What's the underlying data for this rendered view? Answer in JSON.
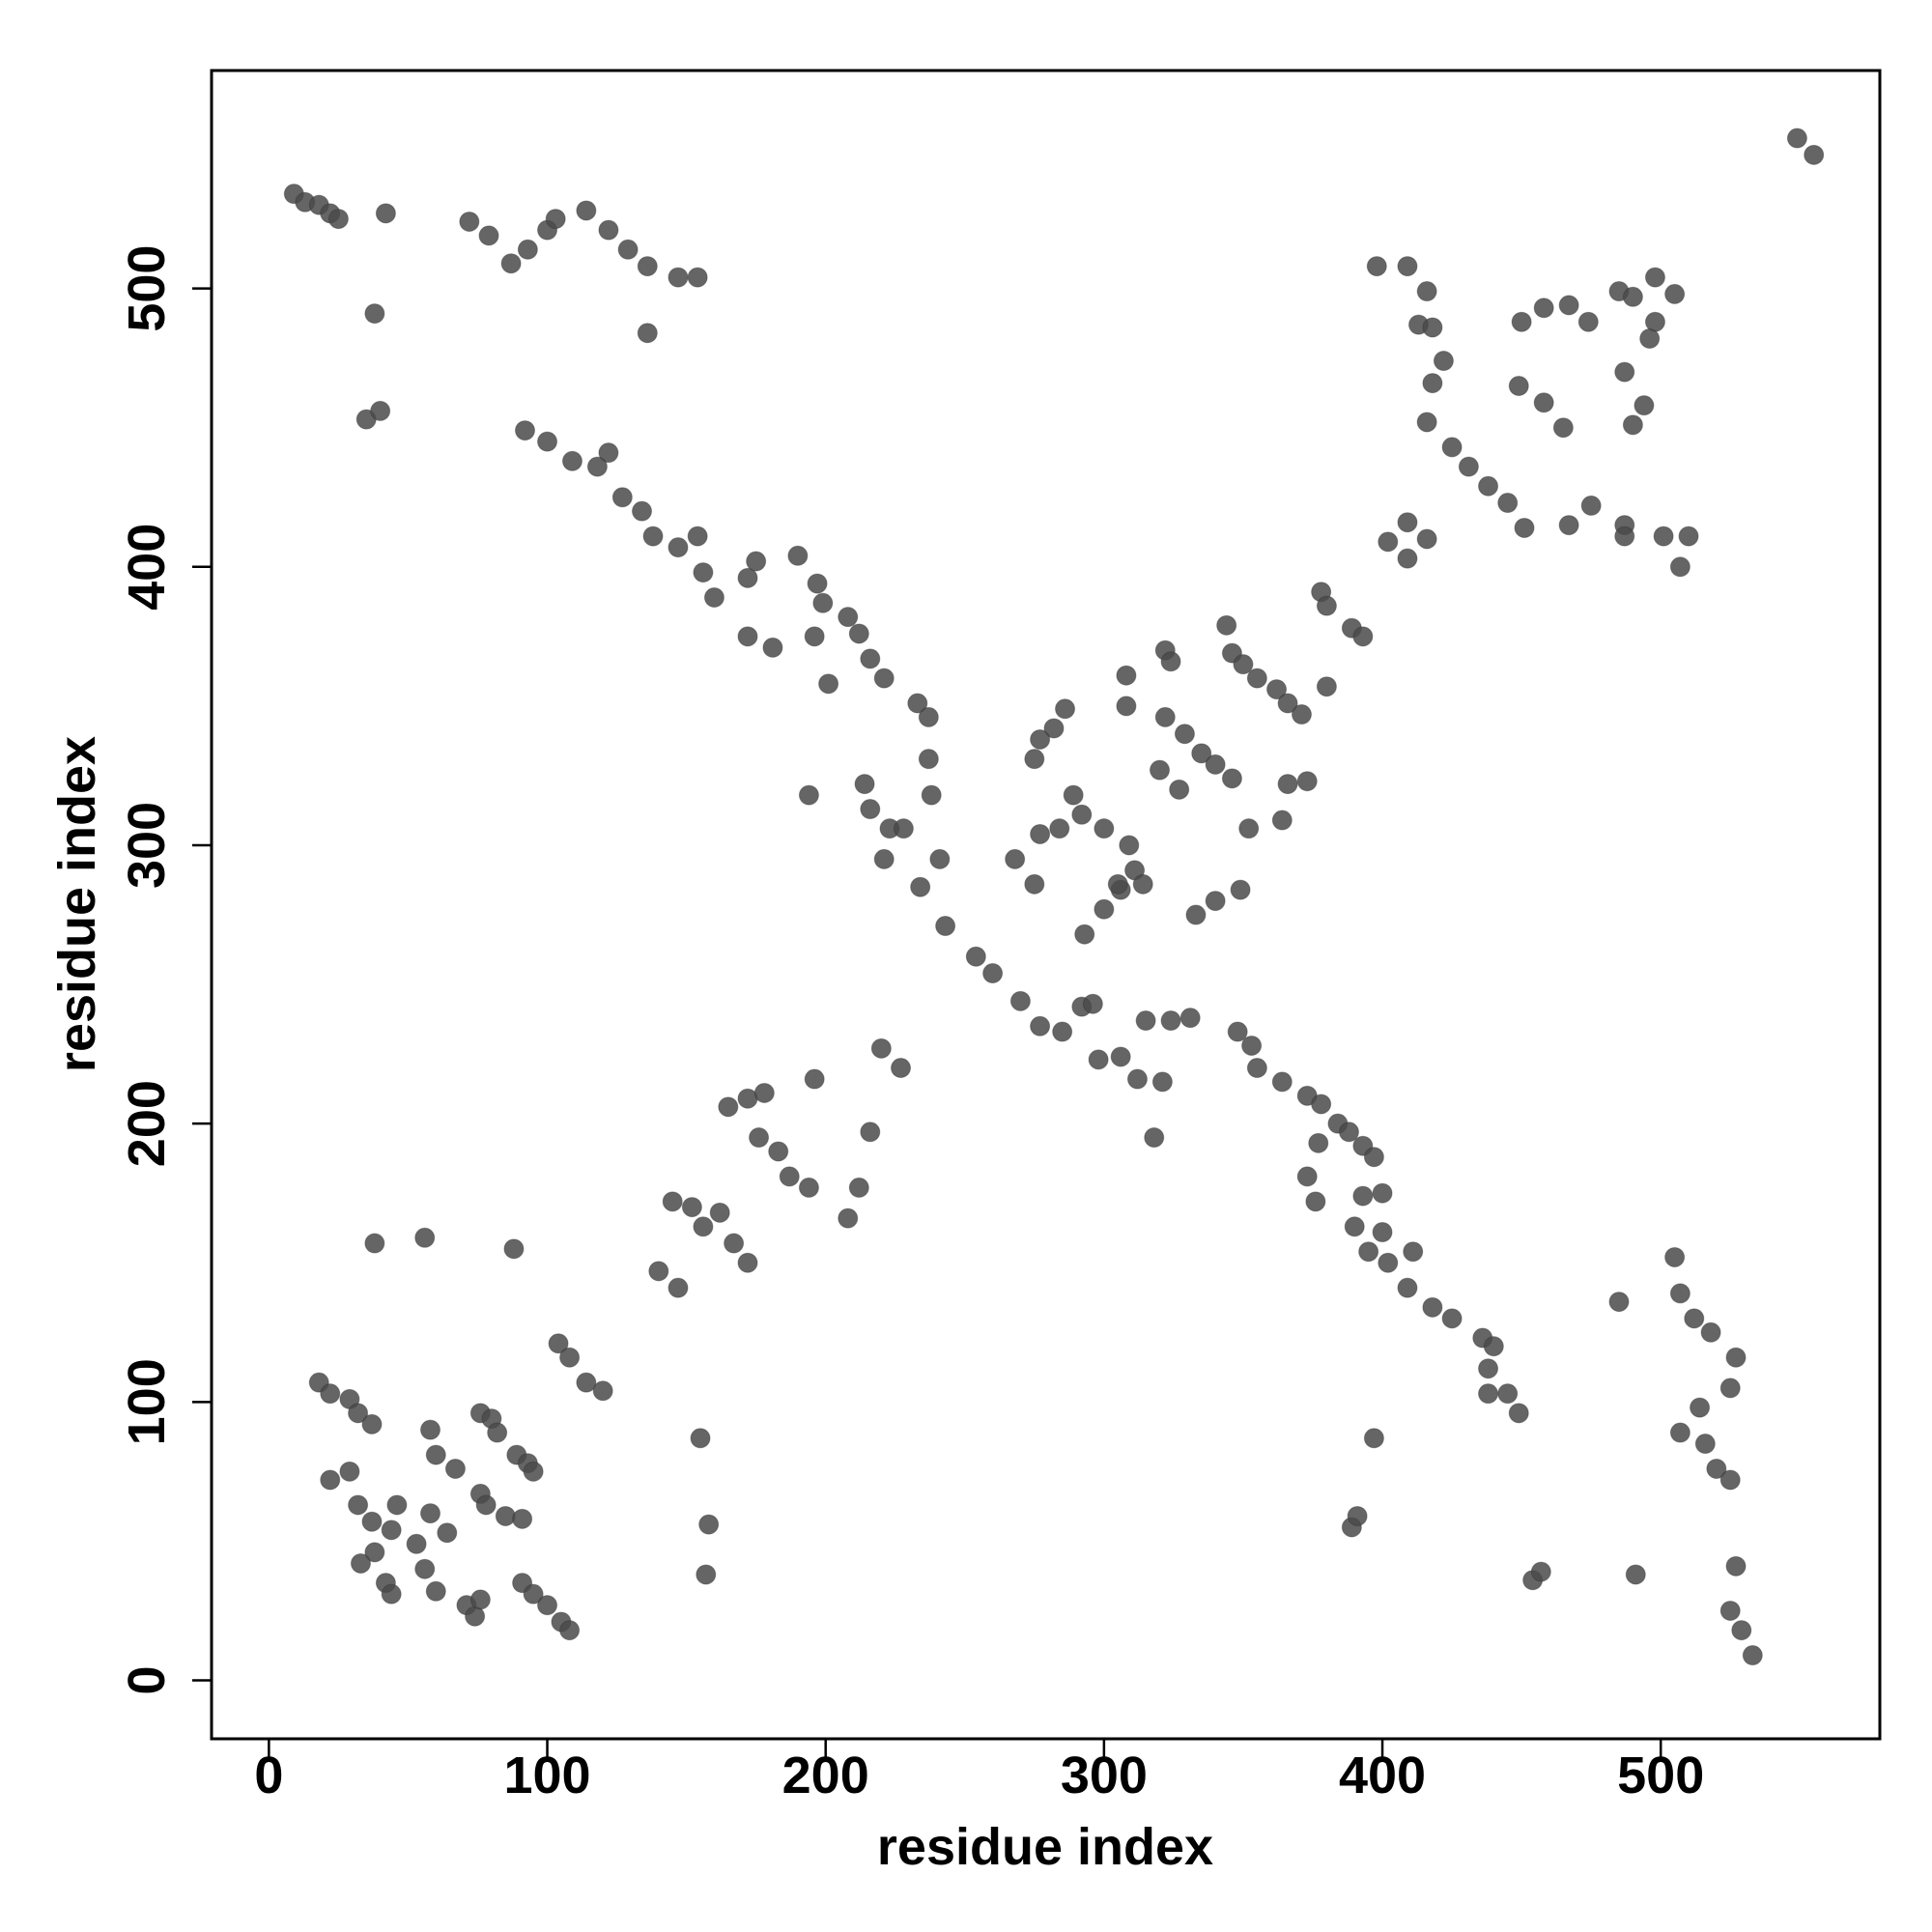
{
  "chart_data": {
    "type": "scatter",
    "x_label": "residue index",
    "y_label": "residue index",
    "xlim": [
      -20.6,
      578.7
    ],
    "ylim": [
      -21,
      578.3
    ],
    "xticks": [
      0,
      100,
      200,
      300,
      400,
      500
    ],
    "yticks": [
      0,
      100,
      200,
      300,
      400,
      500
    ],
    "color": "#4a4a4a",
    "x": [
      9,
      13,
      18,
      22,
      25,
      42,
      38,
      35,
      40,
      72,
      79,
      87,
      93,
      100,
      103,
      114,
      122,
      129,
      136,
      147,
      154,
      136,
      92,
      100,
      109,
      122,
      118,
      127,
      134,
      138,
      147,
      154,
      156,
      160,
      172,
      175,
      190,
      197,
      199,
      208,
      212,
      216,
      221,
      233,
      237,
      201,
      172,
      181,
      196,
      194,
      237,
      238,
      214,
      216,
      223,
      221,
      228,
      234,
      241,
      243,
      254,
      260,
      270,
      277,
      285,
      292,
      296,
      298,
      306,
      312,
      321,
      315,
      324,
      331,
      318,
      348,
      353,
      355,
      364,
      373,
      378,
      384,
      388,
      393,
      397,
      377,
      373,
      376,
      393,
      400,
      390,
      400,
      395,
      402,
      411,
      409,
      418,
      425,
      436,
      440,
      438,
      445,
      449,
      438,
      397,
      389,
      391,
      485,
      505,
      507,
      512,
      518,
      527,
      514,
      525,
      507,
      516,
      520,
      525,
      527,
      525,
      529,
      533,
      454,
      457,
      491,
      398,
      409,
      416,
      413,
      418,
      422,
      418,
      416,
      425,
      431,
      438,
      445,
      451,
      402,
      416,
      409,
      409,
      449,
      458,
      465,
      450,
      458,
      467,
      474,
      485,
      490,
      498,
      496,
      487,
      494,
      490,
      467,
      475,
      487,
      487,
      501,
      510,
      507,
      498,
      505,
      549,
      555,
      378,
      380,
      389,
      393,
      380,
      346,
      350,
      355,
      362,
      366,
      371,
      373,
      366,
      364,
      352,
      322,
      324,
      322,
      329,
      335,
      340,
      346,
      320,
      327,
      286,
      282,
      277,
      275,
      289,
      292,
      284,
      277,
      268,
      300,
      309,
      311,
      314,
      306,
      300,
      293,
      305,
      333,
      340,
      349,
      308,
      308,
      344,
      275,
      220,
      227,
      196,
      216,
      212,
      208,
      165,
      172,
      178,
      176,
      183,
      187,
      194,
      145,
      152,
      156,
      162,
      167,
      172,
      140,
      147,
      155,
      158,
      157,
      38,
      56,
      88,
      104,
      108,
      114,
      120,
      18,
      22,
      29,
      32,
      37,
      22,
      29,
      32,
      37,
      38,
      33,
      42,
      44,
      46,
      44,
      53,
      56,
      60,
      58,
      60,
      67,
      58,
      64,
      71,
      74,
      76,
      76,
      80,
      82,
      76,
      78,
      85,
      89,
      93,
      95,
      91,
      91,
      95,
      100,
      105,
      108
    ],
    "y": [
      534,
      531,
      530,
      527,
      525,
      527,
      491,
      453,
      456,
      524,
      519,
      509,
      514,
      521,
      525,
      528,
      521,
      514,
      508,
      504,
      504,
      484,
      449,
      445,
      438,
      441,
      436,
      425,
      420,
      411,
      407,
      411,
      398,
      389,
      396,
      402,
      404,
      394,
      387,
      382,
      376,
      367,
      360,
      351,
      346,
      358,
      375,
      371,
      375,
      318,
      331,
      318,
      322,
      313,
      306,
      295,
      306,
      285,
      295,
      271,
      260,
      254,
      244,
      235,
      233,
      242,
      243,
      223,
      224,
      216,
      215,
      237,
      237,
      238,
      195,
      233,
      228,
      220,
      215,
      210,
      207,
      200,
      197,
      192,
      188,
      193,
      181,
      172,
      174,
      175,
      163,
      161,
      154,
      150,
      154,
      141,
      134,
      130,
      123,
      120,
      112,
      103,
      96,
      103,
      87,
      55,
      59,
      136,
      152,
      139,
      130,
      125,
      116,
      98,
      105,
      89,
      85,
      76,
      72,
      41,
      25,
      18,
      9,
      36,
      39,
      38,
      508,
      508,
      499,
      487,
      486,
      474,
      466,
      452,
      443,
      436,
      429,
      423,
      414,
      409,
      410,
      403,
      416,
      465,
      459,
      450,
      488,
      493,
      494,
      488,
      499,
      497,
      488,
      482,
      470,
      458,
      451,
      415,
      422,
      415,
      411,
      411,
      411,
      400,
      504,
      498,
      554,
      548,
      391,
      386,
      378,
      375,
      357,
      369,
      365,
      360,
      356,
      351,
      347,
      323,
      322,
      309,
      306,
      370,
      366,
      346,
      340,
      333,
      329,
      324,
      327,
      320,
      349,
      342,
      338,
      331,
      318,
      311,
      306,
      304,
      295,
      306,
      300,
      291,
      286,
      284,
      277,
      268,
      286,
      275,
      280,
      284,
      350,
      361,
      379,
      286,
      227,
      220,
      216,
      197,
      177,
      166,
      206,
      209,
      211,
      195,
      190,
      181,
      177,
      172,
      170,
      163,
      168,
      157,
      150,
      147,
      141,
      87,
      56,
      38,
      157,
      159,
      155,
      121,
      116,
      107,
      104,
      107,
      103,
      101,
      96,
      92,
      72,
      75,
      63,
      57,
      46,
      42,
      35,
      31,
      63,
      54,
      49,
      40,
      32,
      90,
      81,
      76,
      60,
      53,
      27,
      23,
      29,
      96,
      94,
      89,
      67,
      63,
      59,
      81,
      78,
      75,
      58,
      35,
      31,
      27,
      21,
      18
    ]
  }
}
